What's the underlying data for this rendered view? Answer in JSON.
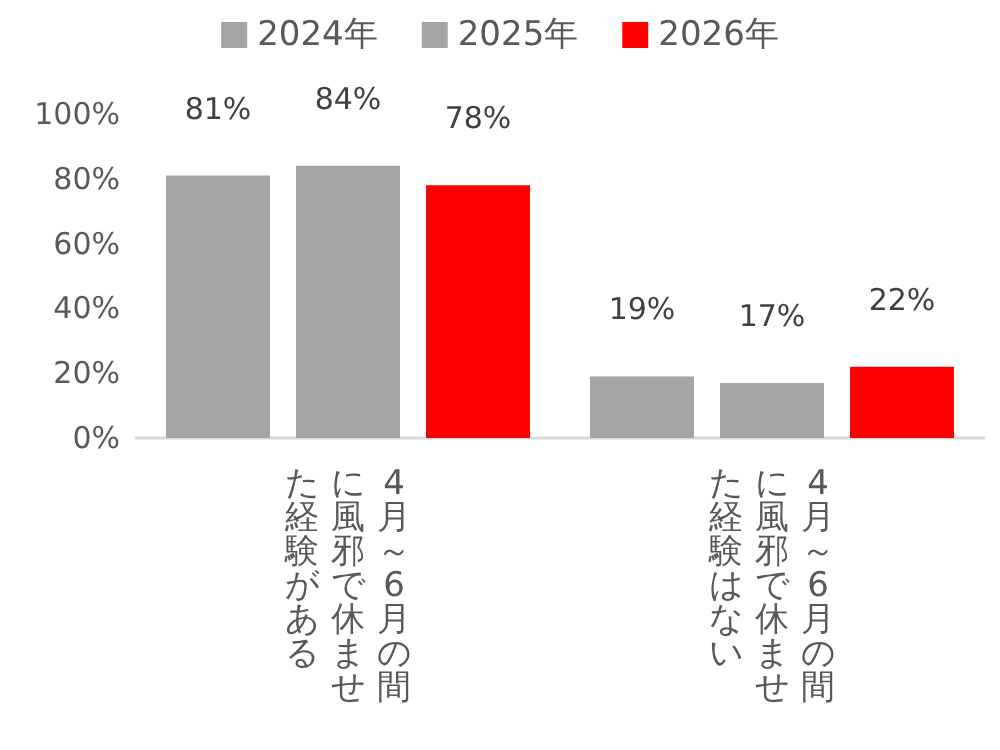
{
  "chart_data": {
    "type": "bar",
    "categories": [
      "4月～6月の間に風邪で休ませた経験がある",
      "4月～6月の間に風邪で休ませた経験はない"
    ],
    "series": [
      {
        "name": "2024年",
        "color": "#a5a5a5",
        "values": [
          81,
          19
        ],
        "value_labels": [
          "81%",
          "19%"
        ]
      },
      {
        "name": "2025年",
        "color": "#a5a5a5",
        "values": [
          84,
          17
        ],
        "value_labels": [
          "84%",
          "17%"
        ]
      },
      {
        "name": "2026年",
        "color": "#ff0000",
        "values": [
          78,
          22
        ],
        "value_labels": [
          "78%",
          "22%"
        ]
      }
    ],
    "ylim": [
      0,
      100
    ],
    "yticks": [
      {
        "value": 0,
        "label": "0%"
      },
      {
        "value": 20,
        "label": "20%"
      },
      {
        "value": 40,
        "label": "40%"
      },
      {
        "value": 60,
        "label": "60%"
      },
      {
        "value": 80,
        "label": "80%"
      },
      {
        "value": 100,
        "label": "100%"
      }
    ],
    "grid": false,
    "legend": "top"
  }
}
